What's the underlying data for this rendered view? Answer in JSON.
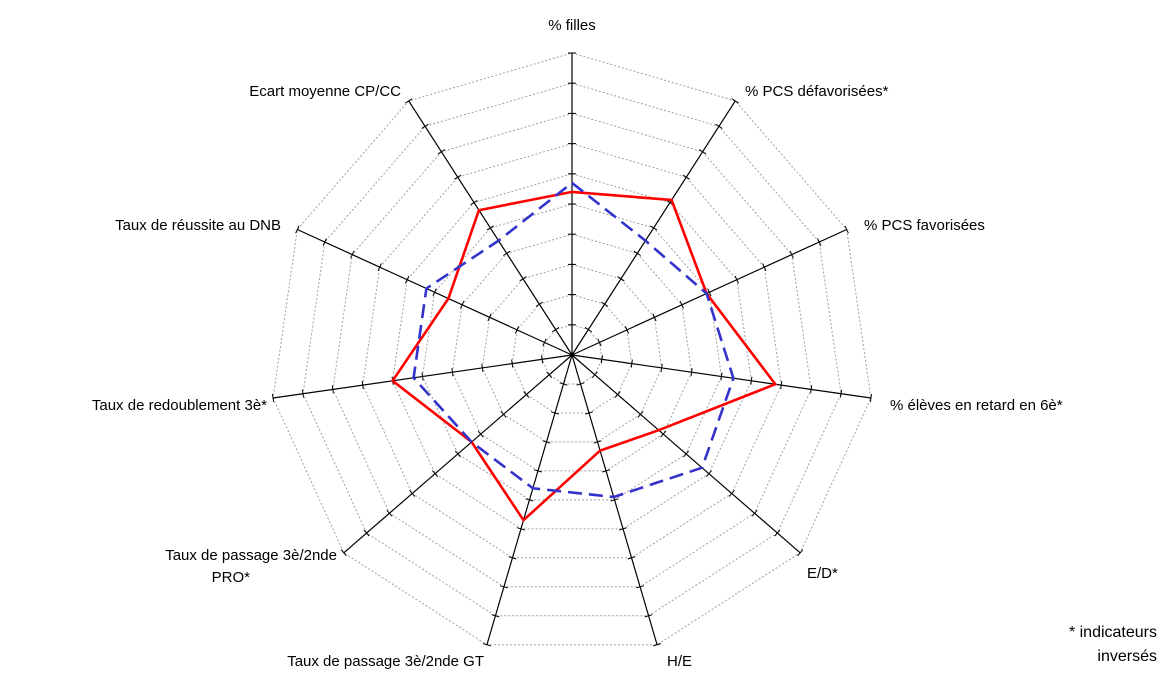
{
  "chart_data": {
    "type": "radar",
    "axes": [
      "% filles",
      "% PCS défavorisées*",
      "% PCS favorisées",
      "% élèves en retard en 6è*",
      "E/D*",
      "H/E",
      "Taux de passage 3è/2nde GT",
      "Taux de passage 3è/2nde PRO*",
      "Taux de redoublement 3è*",
      "Taux de réussite au DNB",
      "Ecart moyenne CP/CC"
    ],
    "rmax": 10,
    "rings": 10,
    "series": [
      {
        "color": "#ff0000",
        "style": "solid",
        "values": [
          5.4,
          6.1,
          4.9,
          6.8,
          3.8,
          3.3,
          5.7,
          4.4,
          6.0,
          4.5,
          5.7
        ]
      },
      {
        "color": "#3333cc",
        "style": "dashed",
        "values": [
          5.7,
          4.5,
          4.9,
          5.4,
          5.7,
          4.9,
          4.6,
          4.4,
          5.3,
          5.3,
          4.5
        ]
      }
    ]
  },
  "footnote": {
    "line1": "* indicateurs",
    "line2": "inversés"
  }
}
